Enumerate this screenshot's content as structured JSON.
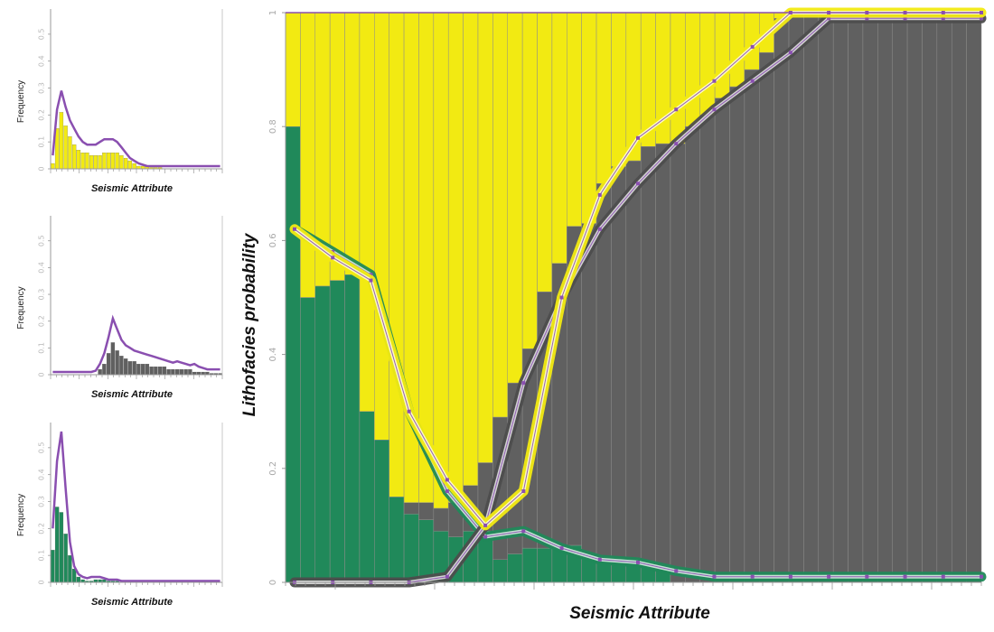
{
  "colors": {
    "sand": "#f2ea12",
    "shale": "#606060",
    "carbonate": "#20895a",
    "curve": "#8a4fb0"
  },
  "chart_data": [
    {
      "type": "bar",
      "role": "histogram",
      "color": "#f2ea12",
      "xlabel": "Seismic Attribute",
      "ylabel": "Frequency",
      "ylim": [
        0,
        0.58
      ],
      "yticks": [
        "0",
        "0.1",
        "0.2",
        "0.3",
        "0.4",
        "0.5"
      ],
      "bin_count": 40,
      "values": [
        0.02,
        0.15,
        0.21,
        0.16,
        0.12,
        0.09,
        0.07,
        0.06,
        0.06,
        0.05,
        0.05,
        0.05,
        0.06,
        0.06,
        0.06,
        0.06,
        0.05,
        0.04,
        0.03,
        0.02,
        0.01,
        0.01,
        0.01,
        0.005,
        0.005,
        0.005,
        0,
        0,
        0,
        0,
        0,
        0,
        0,
        0,
        0,
        0,
        0,
        0,
        0,
        0
      ],
      "curve": [
        0.05,
        0.22,
        0.29,
        0.23,
        0.18,
        0.15,
        0.12,
        0.1,
        0.09,
        0.09,
        0.09,
        0.1,
        0.11,
        0.11,
        0.11,
        0.1,
        0.08,
        0.06,
        0.04,
        0.03,
        0.02,
        0.015,
        0.01,
        0.01,
        0.01,
        0.01,
        0.01,
        0.01,
        0.01,
        0.01,
        0.01,
        0.01,
        0.01,
        0.01,
        0.01,
        0.01,
        0.01,
        0.01,
        0.01,
        0.01
      ]
    },
    {
      "type": "bar",
      "role": "histogram",
      "color": "#606060",
      "xlabel": "Seismic Attribute",
      "ylabel": "Frequency",
      "ylim": [
        0,
        0.58
      ],
      "yticks": [
        "0",
        "0.1",
        "0.2",
        "0.3",
        "0.4",
        "0.5"
      ],
      "bin_count": 40,
      "values": [
        0,
        0,
        0,
        0,
        0,
        0,
        0,
        0,
        0,
        0,
        0,
        0.02,
        0.04,
        0.08,
        0.12,
        0.09,
        0.07,
        0.06,
        0.05,
        0.05,
        0.04,
        0.04,
        0.04,
        0.03,
        0.03,
        0.03,
        0.03,
        0.02,
        0.02,
        0.02,
        0.02,
        0.02,
        0.02,
        0.01,
        0.01,
        0.01,
        0.01,
        0.005,
        0.005,
        0.005
      ],
      "curve": [
        0.01,
        0.01,
        0.01,
        0.01,
        0.01,
        0.01,
        0.01,
        0.01,
        0.01,
        0.01,
        0.015,
        0.04,
        0.08,
        0.14,
        0.21,
        0.17,
        0.13,
        0.11,
        0.1,
        0.09,
        0.085,
        0.08,
        0.075,
        0.07,
        0.065,
        0.06,
        0.055,
        0.05,
        0.045,
        0.05,
        0.045,
        0.04,
        0.035,
        0.04,
        0.03,
        0.025,
        0.02,
        0.02,
        0.02,
        0.02
      ]
    },
    {
      "type": "bar",
      "role": "histogram",
      "color": "#20895a",
      "xlabel": "Seismic Attribute",
      "ylabel": "Frequency",
      "ylim": [
        0,
        0.58
      ],
      "yticks": [
        "0",
        "0.1",
        "0.2",
        "0.3",
        "0.4",
        "0.5"
      ],
      "bin_count": 40,
      "values": [
        0.12,
        0.28,
        0.26,
        0.18,
        0.1,
        0.05,
        0.02,
        0.01,
        0.005,
        0.005,
        0.01,
        0.01,
        0.01,
        0.005,
        0.005,
        0.005,
        0,
        0,
        0,
        0,
        0,
        0,
        0,
        0,
        0,
        0,
        0,
        0,
        0,
        0,
        0,
        0,
        0,
        0,
        0,
        0,
        0,
        0,
        0,
        0
      ],
      "curve": [
        0.2,
        0.45,
        0.56,
        0.35,
        0.15,
        0.06,
        0.03,
        0.02,
        0.015,
        0.02,
        0.02,
        0.02,
        0.015,
        0.01,
        0.01,
        0.01,
        0.005,
        0.005,
        0.005,
        0.005,
        0.005,
        0.005,
        0.005,
        0.005,
        0.005,
        0.005,
        0.005,
        0.005,
        0.005,
        0.005,
        0.005,
        0.005,
        0.005,
        0.005,
        0.005,
        0.005,
        0.005,
        0.005,
        0.005,
        0.005
      ]
    },
    {
      "type": "bar",
      "role": "stacked-probability",
      "xlabel": "Seismic Attribute",
      "ylabel": "Lithofacies probability",
      "ylim": [
        0,
        1
      ],
      "yticks": [
        "0",
        "0.2",
        "0.4",
        "0.6",
        "0.8",
        "1"
      ],
      "bin_count": 47,
      "series": [
        {
          "color": "#20895a",
          "values": [
            0.8,
            0.5,
            0.52,
            0.53,
            0.54,
            0.3,
            0.25,
            0.15,
            0.12,
            0.11,
            0.09,
            0.08,
            0.09,
            0.09,
            0.04,
            0.05,
            0.06,
            0.06,
            0.06,
            0.065,
            0.05,
            0.04,
            0.04,
            0.04,
            0.035,
            0.03,
            0,
            0,
            0,
            0,
            0,
            0,
            0,
            0,
            0,
            0,
            0,
            0,
            0,
            0,
            0,
            0,
            0,
            0,
            0,
            0,
            0
          ]
        },
        {
          "color": "#606060",
          "values": [
            0,
            0,
            0,
            0,
            0,
            0,
            0,
            0,
            0.02,
            0.03,
            0.04,
            0.06,
            0.08,
            0.12,
            0.25,
            0.3,
            0.35,
            0.45,
            0.5,
            0.56,
            0.58,
            0.66,
            0.69,
            0.7,
            0.73,
            0.74,
            0.77,
            0.8,
            0.82,
            0.85,
            0.87,
            0.9,
            0.93,
            0.99,
            1,
            1,
            1,
            1,
            1,
            1,
            1,
            1,
            1,
            1,
            1,
            1,
            1
          ]
        },
        {
          "color": "#f2ea12",
          "values": [
            0.2,
            0.5,
            0.48,
            0.47,
            0.46,
            0.7,
            0.75,
            0.85,
            0.86,
            0.86,
            0.87,
            0.86,
            0.83,
            0.79,
            0.71,
            0.65,
            0.59,
            0.49,
            0.44,
            0.375,
            0.37,
            0.3,
            0.27,
            0.26,
            0.235,
            0.23,
            0.23,
            0.2,
            0.18,
            0.15,
            0.13,
            0.1,
            0.07,
            0.01,
            0,
            0,
            0,
            0,
            0,
            0,
            0,
            0,
            0,
            0,
            0,
            0,
            0
          ]
        }
      ],
      "curves": [
        {
          "color": "#20895a",
          "values": [
            0.62,
            0.58,
            0.54,
            0.3,
            0.16,
            0.08,
            0.09,
            0.06,
            0.04,
            0.035,
            0.02,
            0.01,
            0.01,
            0.01,
            0.01,
            0.01,
            0.01,
            0.01,
            0.01
          ]
        },
        {
          "color": "#606060",
          "values": [
            0,
            0,
            0,
            0,
            0.01,
            0.1,
            0.35,
            0.5,
            0.62,
            0.7,
            0.77,
            0.83,
            0.88,
            0.93,
            0.99,
            0.99,
            0.99,
            0.99,
            0.99
          ]
        },
        {
          "color": "#f2ea12",
          "values": [
            0.62,
            0.57,
            0.53,
            0.3,
            0.18,
            0.1,
            0.16,
            0.5,
            0.68,
            0.78,
            0.83,
            0.88,
            0.94,
            1.0,
            1.0,
            1.0,
            1.0,
            1.0,
            1.0
          ]
        }
      ]
    }
  ]
}
